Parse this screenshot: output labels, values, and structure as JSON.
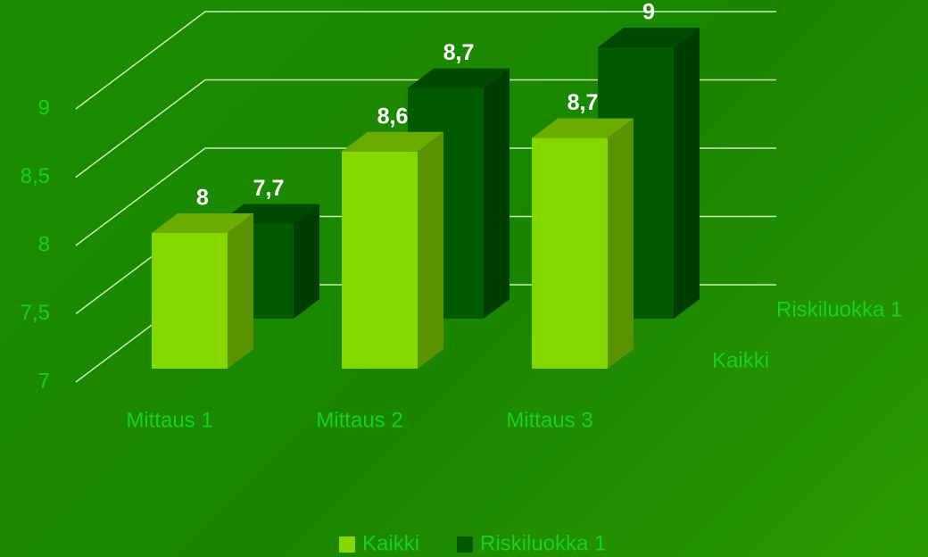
{
  "chart_data": {
    "type": "bar",
    "categories": [
      "Mittaus 1",
      "Mittaus 2",
      "Mittaus 3"
    ],
    "series": [
      {
        "name": "Kaikki",
        "color": "#84d800",
        "values": [
          8,
          8.6,
          8.7
        ],
        "value_labels": [
          "8",
          "8,6",
          "8,7"
        ]
      },
      {
        "name": "Riskiluokka 1",
        "color": "#005a00",
        "values": [
          7.7,
          8.7,
          9
        ],
        "value_labels": [
          "7,7",
          "8,7",
          "9"
        ]
      }
    ],
    "ylim": [
      7,
      9
    ],
    "yticks": [
      7,
      {
        "value": 7.5,
        "label": "7,5"
      },
      8,
      {
        "value": 8.5,
        "label": "8,5"
      },
      9
    ],
    "grid": true,
    "legend": "bottom"
  }
}
